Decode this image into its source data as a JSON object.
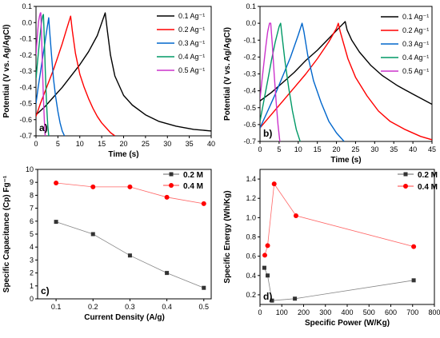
{
  "figure": {
    "background": "#ffffff"
  },
  "chart_data": [
    {
      "panel": "a)",
      "type": "line",
      "xlabel": "Time (s)",
      "ylabel": "Potential (V vs. Ag/AgCl)",
      "xlim": [
        0,
        40
      ],
      "ylim": [
        -0.7,
        0.1
      ],
      "xticks": [
        "0",
        "5",
        "10",
        "15",
        "20",
        "25",
        "30",
        "35",
        "40"
      ],
      "yticks": [
        "-0.7",
        "-0.6",
        "-0.5",
        "-0.4",
        "-0.3",
        "-0.2",
        "-0.1",
        "0.0",
        "0.1"
      ],
      "legend_position": "top-right",
      "series": [
        {
          "name": "0.1 Ag⁻¹",
          "color": "#000000",
          "x": [
            0,
            2,
            4,
            6,
            8,
            10,
            12,
            14,
            15.8,
            16.3,
            17,
            18,
            20,
            22,
            25,
            28,
            32,
            36,
            40
          ],
          "y": [
            -0.57,
            -0.52,
            -0.46,
            -0.4,
            -0.33,
            -0.26,
            -0.18,
            -0.08,
            0.06,
            -0.05,
            -0.2,
            -0.33,
            -0.45,
            -0.51,
            -0.57,
            -0.61,
            -0.64,
            -0.66,
            -0.67
          ]
        },
        {
          "name": "0.2 Ag⁻¹",
          "color": "#ff0000",
          "x": [
            0,
            1,
            2,
            3,
            4,
            5,
            6,
            7,
            7.9,
            8.3,
            9,
            10,
            11,
            12,
            13,
            14,
            15,
            16,
            17,
            18
          ],
          "y": [
            -0.58,
            -0.5,
            -0.43,
            -0.36,
            -0.29,
            -0.21,
            -0.13,
            -0.04,
            0.04,
            -0.05,
            -0.19,
            -0.32,
            -0.4,
            -0.47,
            -0.53,
            -0.58,
            -0.62,
            -0.65,
            -0.68,
            -0.7
          ]
        },
        {
          "name": "0.3 Ag⁻¹",
          "color": "#0066cc",
          "x": [
            0,
            0.5,
            1,
            1.5,
            2,
            2.5,
            2.9,
            3.2,
            3.6,
            4,
            4.5,
            5,
            5.5,
            6,
            6.5
          ],
          "y": [
            -0.5,
            -0.4,
            -0.31,
            -0.22,
            -0.13,
            -0.04,
            0.03,
            -0.08,
            -0.22,
            -0.35,
            -0.46,
            -0.55,
            -0.62,
            -0.67,
            -0.7
          ]
        },
        {
          "name": "0.4 Ag⁻¹",
          "color": "#009966",
          "x": [
            0,
            0.3,
            0.6,
            0.9,
            1.2,
            1.5,
            1.7,
            1.9,
            2.1,
            2.3,
            2.5,
            2.7,
            2.9
          ],
          "y": [
            -0.35,
            -0.26,
            -0.17,
            -0.09,
            -0.01,
            0.04,
            0.05,
            -0.1,
            -0.28,
            -0.43,
            -0.55,
            -0.64,
            -0.7
          ]
        },
        {
          "name": "0.5 Ag⁻¹",
          "color": "#cc33cc",
          "x": [
            0,
            0.2,
            0.4,
            0.6,
            0.8,
            1.0,
            1.1,
            1.3,
            1.5,
            1.7,
            1.9,
            2.1
          ],
          "y": [
            -0.2,
            -0.12,
            -0.05,
            0.01,
            0.04,
            0.06,
            0.06,
            -0.1,
            -0.3,
            -0.47,
            -0.6,
            -0.7
          ]
        }
      ]
    },
    {
      "panel": "b)",
      "type": "line",
      "xlabel": "Time (s)",
      "ylabel": "Potential (V vs. Ag/AgCl)",
      "xlim": [
        0,
        45
      ],
      "ylim": [
        -0.7,
        0.1
      ],
      "xticks": [
        "0",
        "5",
        "10",
        "15",
        "20",
        "25",
        "30",
        "35",
        "40",
        "45"
      ],
      "yticks": [
        "-0.7",
        "-0.6",
        "-0.5",
        "-0.4",
        "-0.3",
        "-0.2",
        "-0.1",
        "0.0",
        "0.1"
      ],
      "legend_position": "top-right",
      "series": [
        {
          "name": "0.1 Ag⁻¹",
          "color": "#000000",
          "x": [
            0,
            3,
            6,
            9,
            12,
            15,
            18,
            21,
            22.3,
            22.8,
            24,
            26,
            29,
            32,
            36,
            40,
            45
          ],
          "y": [
            -0.46,
            -0.41,
            -0.35,
            -0.29,
            -0.22,
            -0.16,
            -0.09,
            -0.02,
            0.01,
            -0.04,
            -0.1,
            -0.17,
            -0.25,
            -0.31,
            -0.37,
            -0.42,
            -0.48
          ]
        },
        {
          "name": "0.2 Ag⁻¹",
          "color": "#ff0000",
          "x": [
            0,
            3,
            6,
            9,
            12,
            15,
            18,
            20,
            20.5,
            21,
            23,
            25,
            28,
            31,
            34,
            38,
            42,
            45
          ],
          "y": [
            -0.62,
            -0.54,
            -0.46,
            -0.38,
            -0.3,
            -0.21,
            -0.11,
            -0.03,
            0.0,
            -0.05,
            -0.21,
            -0.32,
            -0.43,
            -0.52,
            -0.58,
            -0.63,
            -0.67,
            -0.69
          ]
        },
        {
          "name": "0.3 Ag⁻¹",
          "color": "#0066cc",
          "x": [
            0,
            2,
            4,
            6,
            8,
            10,
            11,
            11.5,
            12.5,
            14,
            16,
            18,
            20,
            22
          ],
          "y": [
            -0.62,
            -0.52,
            -0.42,
            -0.31,
            -0.2,
            -0.07,
            0.0,
            -0.05,
            -0.19,
            -0.34,
            -0.47,
            -0.58,
            -0.65,
            -0.7
          ]
        },
        {
          "name": "0.4 Ag⁻¹",
          "color": "#009966",
          "x": [
            0,
            1,
            2,
            3,
            4,
            5,
            5.4,
            5.8,
            6.5,
            7.5,
            8.5,
            9.5,
            10.5
          ],
          "y": [
            -0.58,
            -0.46,
            -0.34,
            -0.22,
            -0.11,
            -0.02,
            0.0,
            -0.08,
            -0.22,
            -0.38,
            -0.52,
            -0.63,
            -0.7
          ]
        },
        {
          "name": "0.5 Ag⁻¹",
          "color": "#cc33cc",
          "x": [
            0,
            0.5,
            1,
            1.5,
            2,
            2.5,
            2.8,
            3.2,
            3.7,
            4.2,
            4.7,
            5.2
          ],
          "y": [
            -0.45,
            -0.34,
            -0.24,
            -0.14,
            -0.05,
            0.0,
            0.0,
            -0.12,
            -0.3,
            -0.46,
            -0.6,
            -0.7
          ]
        }
      ]
    },
    {
      "panel": "c)",
      "type": "scatter",
      "xlabel": "Current Density (A/g)",
      "ylabel": "Specific Capacitance (Cp) Fg⁻¹",
      "xlim": [
        0.05,
        0.52
      ],
      "ylim": [
        0,
        10
      ],
      "xticks": [
        "0.1",
        "0.2",
        "0.3",
        "0.4",
        "0.5"
      ],
      "yticks": [
        "0",
        "1",
        "2",
        "3",
        "4",
        "5",
        "6",
        "7",
        "8",
        "9",
        "10"
      ],
      "legend_position": "top-right",
      "series": [
        {
          "name": "0.2 M",
          "color": "#333333",
          "marker": "square",
          "x": [
            0.1,
            0.2,
            0.3,
            0.4,
            0.5
          ],
          "y": [
            5.95,
            5.0,
            3.35,
            2.0,
            0.85
          ]
        },
        {
          "name": "0.4 M",
          "color": "#ff0000",
          "marker": "circle",
          "x": [
            0.1,
            0.2,
            0.3,
            0.4,
            0.5
          ],
          "y": [
            8.95,
            8.65,
            8.65,
            7.85,
            7.35
          ]
        }
      ]
    },
    {
      "panel": "d)",
      "type": "scatter",
      "xlabel": "Specific Power (W/Kg)",
      "ylabel": "Specific Energy (Wh/Kg)",
      "xlim": [
        0,
        800
      ],
      "ylim": [
        0.1,
        1.5
      ],
      "xticks": [
        "0",
        "100",
        "200",
        "300",
        "400",
        "500",
        "600",
        "700",
        "800"
      ],
      "yticks": [
        "0.2",
        "0.4",
        "0.6",
        "0.8",
        "1.0",
        "1.2",
        "1.4"
      ],
      "legend_position": "top-right",
      "series": [
        {
          "name": "0.2 M",
          "color": "#333333",
          "marker": "square",
          "x": [
            20,
            35,
            55,
            160,
            705
          ],
          "y": [
            0.48,
            0.4,
            0.14,
            0.16,
            0.35
          ]
        },
        {
          "name": "0.4 M",
          "color": "#ff0000",
          "marker": "circle",
          "x": [
            22,
            35,
            65,
            165,
            705
          ],
          "y": [
            0.61,
            0.71,
            1.35,
            1.02,
            0.7
          ]
        }
      ]
    }
  ]
}
